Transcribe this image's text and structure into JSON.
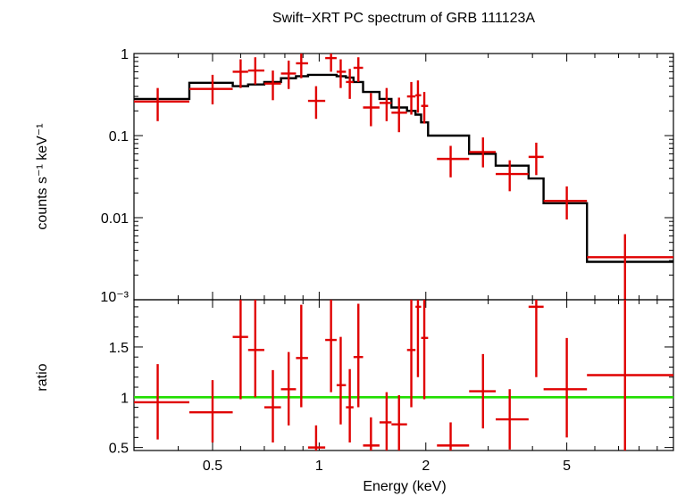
{
  "chart_data": [
    {
      "type": "line",
      "panel": "spectrum",
      "title": "Swift−XRT PC spectrum of GRB 111123A",
      "xlabel": "Energy (keV)",
      "ylabel": "counts s⁻¹ keV⁻¹",
      "xscale": "log",
      "yscale": "log",
      "xlim": [
        0.3,
        10
      ],
      "ylim": [
        0.001,
        1
      ],
      "ytick_labels": [
        "1",
        "0.1",
        "0.01",
        "10⁻³"
      ],
      "ytick_values": [
        1,
        0.1,
        0.01,
        0.001
      ],
      "data_color": "#e00000",
      "model_color": "#000000",
      "data": [
        {
          "x": 0.35,
          "xlo": 0.3,
          "xhi": 0.43,
          "y": 0.26,
          "ylo": 0.15,
          "yhi": 0.38
        },
        {
          "x": 0.5,
          "xlo": 0.43,
          "xhi": 0.57,
          "y": 0.37,
          "ylo": 0.24,
          "yhi": 0.55
        },
        {
          "x": 0.6,
          "xlo": 0.57,
          "xhi": 0.63,
          "y": 0.6,
          "ylo": 0.38,
          "yhi": 0.85
        },
        {
          "x": 0.66,
          "xlo": 0.63,
          "xhi": 0.7,
          "y": 0.62,
          "ylo": 0.42,
          "yhi": 0.9
        },
        {
          "x": 0.74,
          "xlo": 0.7,
          "xhi": 0.78,
          "y": 0.43,
          "ylo": 0.27,
          "yhi": 0.62
        },
        {
          "x": 0.82,
          "xlo": 0.78,
          "xhi": 0.86,
          "y": 0.57,
          "ylo": 0.37,
          "yhi": 0.82
        },
        {
          "x": 0.89,
          "xlo": 0.86,
          "xhi": 0.93,
          "y": 0.76,
          "ylo": 0.5,
          "yhi": 1.0
        },
        {
          "x": 0.98,
          "xlo": 0.93,
          "xhi": 1.04,
          "y": 0.265,
          "ylo": 0.16,
          "yhi": 0.4
        },
        {
          "x": 1.08,
          "xlo": 1.04,
          "xhi": 1.12,
          "y": 0.88,
          "ylo": 0.6,
          "yhi": 1.0
        },
        {
          "x": 1.15,
          "xlo": 1.12,
          "xhi": 1.19,
          "y": 0.6,
          "ylo": 0.38,
          "yhi": 0.85
        },
        {
          "x": 1.22,
          "xlo": 1.19,
          "xhi": 1.25,
          "y": 0.45,
          "ylo": 0.28,
          "yhi": 0.65
        },
        {
          "x": 1.29,
          "xlo": 1.25,
          "xhi": 1.33,
          "y": 0.67,
          "ylo": 0.45,
          "yhi": 0.9
        },
        {
          "x": 1.4,
          "xlo": 1.33,
          "xhi": 1.48,
          "y": 0.22,
          "ylo": 0.13,
          "yhi": 0.33
        },
        {
          "x": 1.55,
          "xlo": 1.48,
          "xhi": 1.6,
          "y": 0.25,
          "ylo": 0.15,
          "yhi": 0.38
        },
        {
          "x": 1.68,
          "xlo": 1.6,
          "xhi": 1.77,
          "y": 0.19,
          "ylo": 0.11,
          "yhi": 0.29
        },
        {
          "x": 1.82,
          "xlo": 1.77,
          "xhi": 1.87,
          "y": 0.3,
          "ylo": 0.18,
          "yhi": 0.45
        },
        {
          "x": 1.9,
          "xlo": 1.87,
          "xhi": 1.94,
          "y": 0.31,
          "ylo": 0.19,
          "yhi": 0.47
        },
        {
          "x": 1.98,
          "xlo": 1.94,
          "xhi": 2.03,
          "y": 0.23,
          "ylo": 0.14,
          "yhi": 0.34
        },
        {
          "x": 2.35,
          "xlo": 2.15,
          "xhi": 2.65,
          "y": 0.052,
          "ylo": 0.031,
          "yhi": 0.075
        },
        {
          "x": 2.9,
          "xlo": 2.65,
          "xhi": 3.15,
          "y": 0.063,
          "ylo": 0.041,
          "yhi": 0.095
        },
        {
          "x": 3.45,
          "xlo": 3.15,
          "xhi": 3.9,
          "y": 0.034,
          "ylo": 0.021,
          "yhi": 0.05
        },
        {
          "x": 4.1,
          "xlo": 3.9,
          "xhi": 4.3,
          "y": 0.055,
          "ylo": 0.033,
          "yhi": 0.082
        },
        {
          "x": 5.0,
          "xlo": 4.3,
          "xhi": 5.7,
          "y": 0.016,
          "ylo": 0.0095,
          "yhi": 0.024
        },
        {
          "x": 7.3,
          "xlo": 5.7,
          "xhi": 10.0,
          "y": 0.0033,
          "ylo": 0.001,
          "yhi": 0.0063
        }
      ],
      "model_steps": [
        {
          "x0": 0.3,
          "x1": 0.43,
          "y": 0.28
        },
        {
          "x0": 0.43,
          "x1": 0.57,
          "y": 0.44
        },
        {
          "x0": 0.57,
          "x1": 0.63,
          "y": 0.4
        },
        {
          "x0": 0.63,
          "x1": 0.7,
          "y": 0.42
        },
        {
          "x0": 0.7,
          "x1": 0.78,
          "y": 0.45
        },
        {
          "x0": 0.78,
          "x1": 0.86,
          "y": 0.5
        },
        {
          "x0": 0.86,
          "x1": 0.93,
          "y": 0.53
        },
        {
          "x0": 0.93,
          "x1": 1.04,
          "y": 0.55
        },
        {
          "x0": 1.04,
          "x1": 1.12,
          "y": 0.55
        },
        {
          "x0": 1.12,
          "x1": 1.19,
          "y": 0.53
        },
        {
          "x0": 1.19,
          "x1": 1.25,
          "y": 0.51
        },
        {
          "x0": 1.25,
          "x1": 1.33,
          "y": 0.45
        },
        {
          "x0": 1.33,
          "x1": 1.48,
          "y": 0.34
        },
        {
          "x0": 1.48,
          "x1": 1.6,
          "y": 0.28
        },
        {
          "x0": 1.6,
          "x1": 1.77,
          "y": 0.22
        },
        {
          "x0": 1.77,
          "x1": 1.87,
          "y": 0.2
        },
        {
          "x0": 1.87,
          "x1": 1.94,
          "y": 0.18
        },
        {
          "x0": 1.94,
          "x1": 2.03,
          "y": 0.145
        },
        {
          "x0": 2.03,
          "x1": 2.65,
          "y": 0.1
        },
        {
          "x0": 2.65,
          "x1": 3.15,
          "y": 0.06
        },
        {
          "x0": 3.15,
          "x1": 3.9,
          "y": 0.043
        },
        {
          "x0": 3.9,
          "x1": 4.3,
          "y": 0.03
        },
        {
          "x0": 4.3,
          "x1": 5.7,
          "y": 0.015
        },
        {
          "x0": 5.7,
          "x1": 10.0,
          "y": 0.0029
        }
      ]
    },
    {
      "type": "scatter",
      "panel": "ratio",
      "xlabel": "Energy (keV)",
      "ylabel": "ratio",
      "xscale": "log",
      "xlim": [
        0.3,
        10
      ],
      "ylim": [
        0.47,
        1.97
      ],
      "xtick_labels": [
        "0.5",
        "1",
        "2",
        "5"
      ],
      "xtick_values": [
        0.5,
        1,
        2,
        5
      ],
      "ytick_labels": [
        "0.5",
        "1",
        "1.5"
      ],
      "ytick_values": [
        0.5,
        1,
        1.5
      ],
      "reference_line": {
        "y": 1,
        "color": "#22dd00"
      },
      "data_color": "#e00000",
      "data": [
        {
          "x": 0.35,
          "xlo": 0.3,
          "xhi": 0.43,
          "y": 0.95,
          "ylo": 0.58,
          "yhi": 1.33
        },
        {
          "x": 0.5,
          "xlo": 0.43,
          "xhi": 0.57,
          "y": 0.85,
          "ylo": 0.55,
          "yhi": 1.17
        },
        {
          "x": 0.6,
          "xlo": 0.57,
          "xhi": 0.63,
          "y": 1.6,
          "ylo": 0.98,
          "yhi": 1.97
        },
        {
          "x": 0.66,
          "xlo": 0.63,
          "xhi": 0.7,
          "y": 1.47,
          "ylo": 1.0,
          "yhi": 1.97
        },
        {
          "x": 0.74,
          "xlo": 0.7,
          "xhi": 0.78,
          "y": 0.9,
          "ylo": 0.55,
          "yhi": 1.27
        },
        {
          "x": 0.82,
          "xlo": 0.78,
          "xhi": 0.86,
          "y": 1.08,
          "ylo": 0.72,
          "yhi": 1.45
        },
        {
          "x": 0.89,
          "xlo": 0.86,
          "xhi": 0.93,
          "y": 1.39,
          "ylo": 0.9,
          "yhi": 1.92
        },
        {
          "x": 0.98,
          "xlo": 0.93,
          "xhi": 1.04,
          "y": 0.5,
          "ylo": 0.47,
          "yhi": 0.72
        },
        {
          "x": 1.08,
          "xlo": 1.04,
          "xhi": 1.12,
          "y": 1.57,
          "ylo": 1.05,
          "yhi": 1.97
        },
        {
          "x": 1.15,
          "xlo": 1.12,
          "xhi": 1.19,
          "y": 1.12,
          "ylo": 0.73,
          "yhi": 1.6
        },
        {
          "x": 1.22,
          "xlo": 1.19,
          "xhi": 1.25,
          "y": 0.9,
          "ylo": 0.55,
          "yhi": 1.28
        },
        {
          "x": 1.29,
          "xlo": 1.25,
          "xhi": 1.33,
          "y": 1.4,
          "ylo": 0.9,
          "yhi": 1.93
        },
        {
          "x": 1.4,
          "xlo": 1.33,
          "xhi": 1.48,
          "y": 0.52,
          "ylo": 0.47,
          "yhi": 0.8
        },
        {
          "x": 1.55,
          "xlo": 1.48,
          "xhi": 1.6,
          "y": 0.75,
          "ylo": 0.47,
          "yhi": 1.05
        },
        {
          "x": 1.68,
          "xlo": 1.6,
          "xhi": 1.77,
          "y": 0.73,
          "ylo": 0.47,
          "yhi": 1.02
        },
        {
          "x": 1.82,
          "xlo": 1.77,
          "xhi": 1.87,
          "y": 1.47,
          "ylo": 0.9,
          "yhi": 1.97
        },
        {
          "x": 1.9,
          "xlo": 1.87,
          "xhi": 1.94,
          "y": 1.9,
          "ylo": 1.2,
          "yhi": 1.97
        },
        {
          "x": 1.98,
          "xlo": 1.94,
          "xhi": 2.03,
          "y": 1.59,
          "ylo": 0.98,
          "yhi": 1.97
        },
        {
          "x": 2.35,
          "xlo": 2.15,
          "xhi": 2.65,
          "y": 0.52,
          "ylo": 0.47,
          "yhi": 0.75
        },
        {
          "x": 2.9,
          "xlo": 2.65,
          "xhi": 3.15,
          "y": 1.06,
          "ylo": 0.69,
          "yhi": 1.43
        },
        {
          "x": 3.45,
          "xlo": 3.15,
          "xhi": 3.9,
          "y": 0.78,
          "ylo": 0.48,
          "yhi": 1.08
        },
        {
          "x": 4.1,
          "xlo": 3.9,
          "xhi": 4.3,
          "y": 1.9,
          "ylo": 1.2,
          "yhi": 1.97
        },
        {
          "x": 5.0,
          "xlo": 4.3,
          "xhi": 5.7,
          "y": 1.08,
          "ylo": 0.6,
          "yhi": 1.59
        },
        {
          "x": 7.3,
          "xlo": 5.7,
          "xhi": 10.0,
          "y": 1.22,
          "ylo": 0.47,
          "yhi": 1.97
        }
      ]
    }
  ]
}
